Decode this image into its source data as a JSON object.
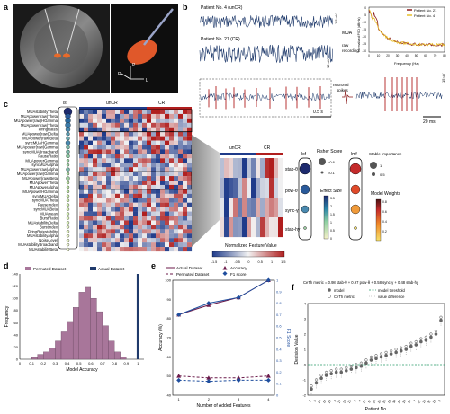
{
  "panel_labels": {
    "a": "a",
    "b": "b",
    "c": "c",
    "d": "d",
    "e": "e",
    "f": "f"
  },
  "panel_a": {
    "r": "R",
    "l": "L",
    "p": "P"
  },
  "panel_b": {
    "patient4": "Patient No. 4 (unCR)",
    "patient21": "Patient No. 21 (CR)",
    "mua": "MUA",
    "raw": "raw",
    "recording": "recording",
    "neuronal": "neuronal",
    "spikes": "spikes",
    "scale_time": "0.5 s",
    "scale_20ms": "20 ms",
    "scale_15uv": "15 uV",
    "scale_15uv_b": "15 uV",
    "scale_1uv": "1.5 uV",
    "psd": {
      "ylabel": "Normalized PSD (dB/Hz)",
      "xlabel": "Frequency (Hz)",
      "legend": [
        "Patient No. 21",
        "Patient No. 4"
      ],
      "colors": [
        "#8b1a1a",
        "#e8c02a"
      ],
      "yticks": [
        "0",
        "-5",
        "-10",
        "-15",
        "-20",
        "-25",
        "-30"
      ],
      "xticks": [
        "0",
        "10",
        "20",
        "30",
        "40",
        "50",
        "60",
        "70",
        "80"
      ]
    }
  },
  "panel_c": {
    "features": [
      "MUAstabilityTheta",
      "MUApower(raw)Theta",
      "MUApower(raw)HGamma",
      "MUApower(raw)Theta",
      "FiringRates",
      "MUApower(raw)Delta",
      "MUApower(raw)Beta",
      "syncMUAHGamma",
      "MUApower(raw)Gamma",
      "syncMUABroadband",
      "PauseRatio",
      "MUApowerGamma",
      "syncMUAAlpha",
      "MUApower(raw)Alpha",
      "MUApower(raw)Gamma",
      "MUApower(raw)Beta",
      "MUApowerTheta",
      "MUApowerAlpha",
      "MUApowerHGamma",
      "syncMUADelta",
      "syncMUATheta",
      "PauseIndex",
      "syncMUABeta",
      "MUAmean",
      "BurstRatio",
      "MUAstabilityDelta",
      "BurstIndex",
      "FiringRatestability",
      "MUAstabilityAlpha",
      "NoiseLevel",
      "MUAstabilityBroadband",
      "MUAstabilityBeta"
    ],
    "lsf": "lsf",
    "uncr": "unCR",
    "cr": "CR",
    "zoom": {
      "uncr": "unCR",
      "cr": "CR",
      "rows": [
        "stab-θ",
        "pow-θ",
        "sync-γ",
        "stab-hy"
      ],
      "colorbar_label": "Normalized Feature Value",
      "colorbar_ticks": [
        "-1.5",
        "-1",
        "-0.5",
        "0",
        "0.5",
        "1",
        "1.5"
      ]
    },
    "lsf2": "lsf",
    "lmf": "lmf",
    "fisher": "Fisher Score",
    "fisher_gt": "=0.6",
    "fisher_lt": "=0.1",
    "effect": "Effect Size",
    "effect_ticks": [
      "3.5",
      "2",
      "1.5",
      "1",
      "0.5",
      "0"
    ],
    "stable": "Stable-importance",
    "stable_ticks": [
      "1",
      "0.5"
    ],
    "weights": "Model Weights",
    "weights_ticks": [
      "0.8",
      "0.6",
      "0.4",
      "0.2"
    ]
  },
  "chart_data": [
    {
      "type": "bar",
      "panel": "d",
      "legend": [
        "Permuted Dataset",
        "Actual Dataset"
      ],
      "xlabel": "Model Accuracy",
      "ylabel": "Frequency",
      "xlim": [
        0,
        1.05
      ],
      "ylim": [
        0,
        140
      ],
      "xticks": [
        "0",
        "0.1",
        "0.2",
        "0.3",
        "0.4",
        "0.5",
        "0.6",
        "0.7",
        "0.8",
        "0.9",
        "1"
      ],
      "yticks": [
        "0",
        "20",
        "40",
        "60",
        "80",
        "100",
        "120",
        "140"
      ],
      "bin_centers": [
        0.125,
        0.175,
        0.225,
        0.275,
        0.325,
        0.375,
        0.425,
        0.475,
        0.525,
        0.575,
        0.625,
        0.675,
        0.725,
        0.775,
        0.825,
        0.875
      ],
      "values": [
        3,
        8,
        12,
        18,
        30,
        45,
        62,
        85,
        110,
        118,
        100,
        78,
        55,
        30,
        12,
        4
      ],
      "actual_value": 1.0,
      "colors": {
        "permuted": "#a8769a",
        "actual": "#1f3a6b"
      }
    },
    {
      "type": "line",
      "panel": "e",
      "xlabel": "Number of Added Features",
      "ylabel": "Accuracy (%)",
      "y2label": "F1 Score",
      "legend": [
        "Actual Dataset",
        "Permuted Dataset",
        "Accuracy",
        "F1 score"
      ],
      "x": [
        1,
        2,
        3,
        4
      ],
      "ylim": [
        40,
        100
      ],
      "y2lim": [
        0,
        1
      ],
      "yticks": [
        "40",
        "50",
        "60",
        "70",
        "80",
        "90",
        "100"
      ],
      "y2ticks": [
        "0",
        "0.1",
        "0.2",
        "0.3",
        "0.4",
        "0.5",
        "0.6",
        "0.7",
        "0.8",
        "0.9",
        "1"
      ],
      "series": [
        {
          "name": "Actual Dataset",
          "values": [
            82,
            87,
            91,
            100
          ],
          "kind": "accuracy",
          "style": "solid"
        },
        {
          "name": "Permuted Dataset",
          "values": [
            50,
            49,
            49,
            50
          ],
          "kind": "accuracy",
          "style": "dashed"
        },
        {
          "name": "F1 score",
          "values": [
            0.7,
            0.8,
            0.85,
            1.0
          ],
          "kind": "f1",
          "style": "solid"
        },
        {
          "name": "Permuted F1",
          "values": [
            0.13,
            0.12,
            0.13,
            0.13
          ],
          "kind": "f1",
          "style": "dashed"
        }
      ],
      "colors": {
        "accuracy": "#6b1a4a",
        "f1": "#1f4e9e"
      }
    },
    {
      "type": "scatter",
      "panel": "f",
      "title": "CeTh metric = 0.98 stab-θ + 0.97 pow-θ + 0.58 sync-γ + 0.48 stab-hy",
      "xlabel": "Patient No.",
      "ylabel": "Decision Value",
      "legend": [
        "model",
        "CeTh metric",
        "model threshold",
        "value difference"
      ],
      "ylim": [
        -2,
        4
      ],
      "yticks": [
        "-2",
        "-1",
        "0",
        "1",
        "2",
        "3",
        "4"
      ],
      "patients": [
        "2",
        "6",
        "14",
        "12",
        "29",
        "9",
        "17",
        "19",
        "15",
        "5",
        "4",
        "27",
        "11",
        "24",
        "25",
        "26",
        "10",
        "30",
        "28",
        "20",
        "23",
        "7",
        "21",
        "18",
        "31",
        "13",
        "3"
      ],
      "values": [
        -1.6,
        -1.2,
        -0.9,
        -0.7,
        -0.6,
        -0.5,
        -0.5,
        -0.4,
        -0.3,
        -0.2,
        -0.1,
        0.1,
        0.3,
        0.4,
        0.5,
        0.6,
        0.7,
        0.8,
        0.9,
        1.0,
        1.2,
        1.3,
        1.5,
        1.6,
        1.8,
        2.0,
        2.9
      ],
      "colors": {
        "model": "#666666",
        "threshold": "#2a9a6a"
      }
    }
  ]
}
